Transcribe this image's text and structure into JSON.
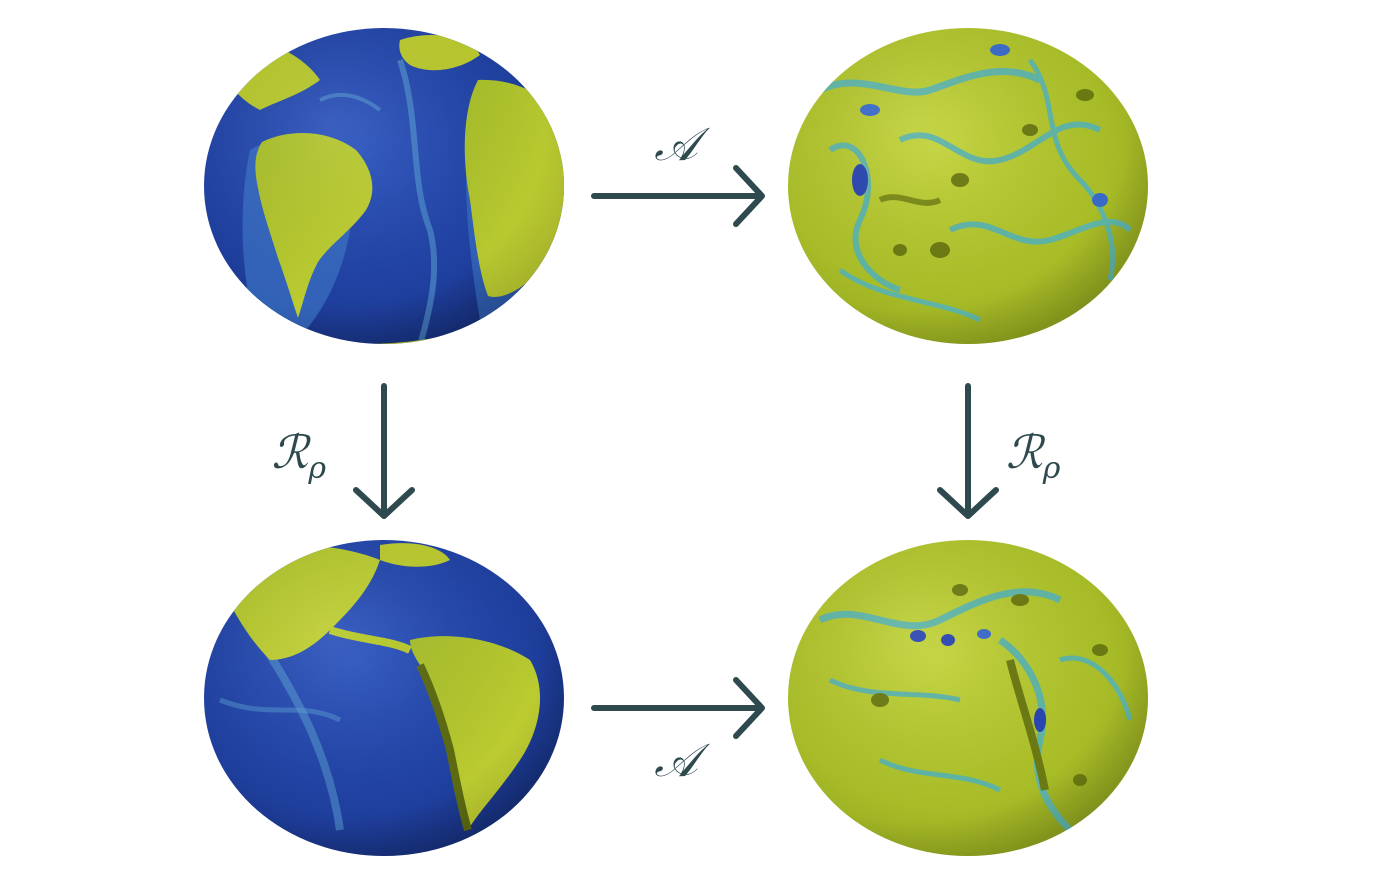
{
  "diagram": {
    "operators": {
      "map": "𝒜",
      "rotation": "ℛ",
      "rotation_subscript": "ρ"
    },
    "nodes": [
      {
        "id": "input"
      },
      {
        "id": "output"
      },
      {
        "id": "rotated-input"
      },
      {
        "id": "rotated-output"
      }
    ],
    "edges": [
      {
        "from": "input",
        "to": "output",
        "operator": "map"
      },
      {
        "from": "input",
        "to": "rotated-input",
        "operator": "rotation"
      },
      {
        "from": "output",
        "to": "rotated-output",
        "operator": "rotation"
      },
      {
        "from": "rotated-input",
        "to": "rotated-output",
        "operator": "map"
      }
    ],
    "colors": {
      "ocean": "#1f3f9e",
      "ocean_shallow": "#5a9bd0",
      "land": "#b7c92a",
      "land_dark": "#6b7a12",
      "field_teal": "#5fb4a6",
      "field_base": "#aabf2a",
      "arrow": "#2f4a4f"
    }
  }
}
